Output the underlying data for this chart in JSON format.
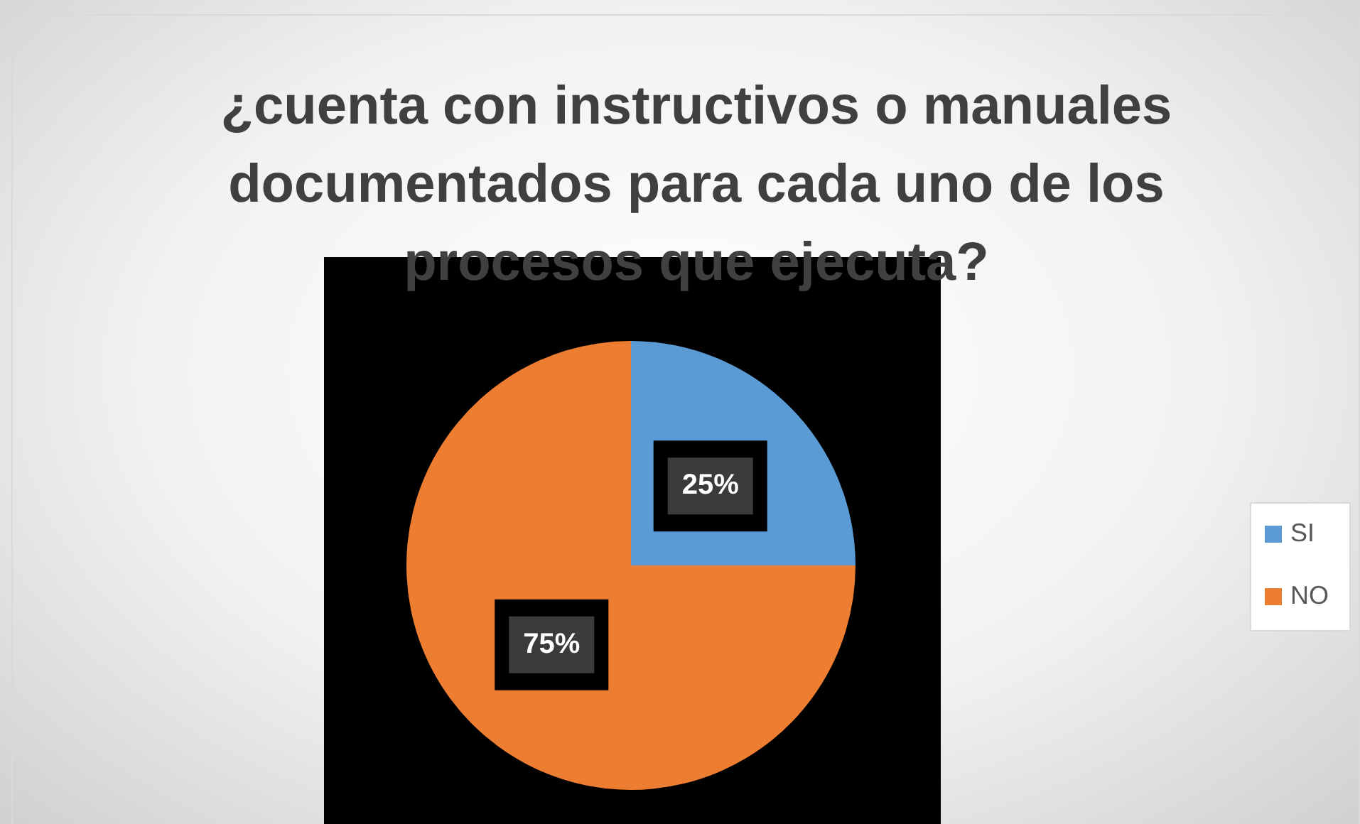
{
  "chart_data": {
    "type": "pie",
    "title": "¿cuenta con instructivos o manuales documentados para cada uno de los procesos que ejecuta?",
    "categories": [
      "SI",
      "NO"
    ],
    "values": [
      25,
      75
    ],
    "colors": [
      "#5b9bd5",
      "#ed7d31"
    ],
    "value_labels": [
      "25%",
      "75%"
    ],
    "legend": "right"
  }
}
